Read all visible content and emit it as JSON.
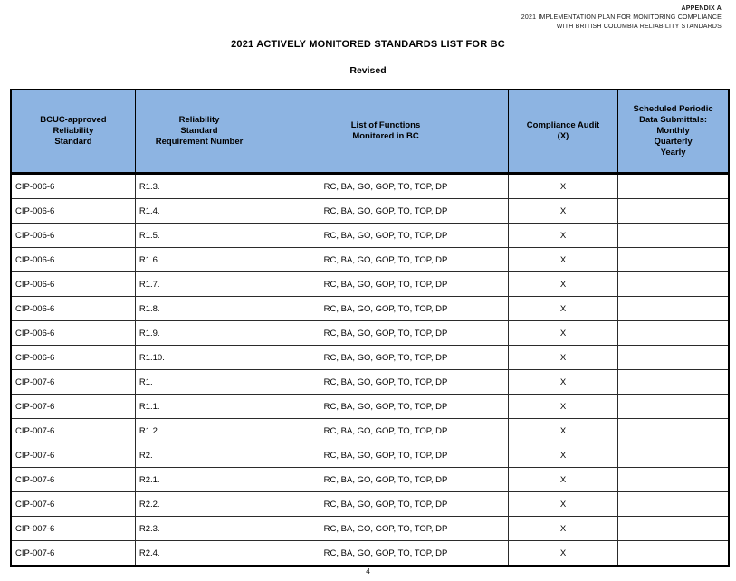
{
  "page": {
    "appendix_lines": [
      "APPENDIX A",
      "2021 IMPLEMENTATION PLAN FOR MONITORING COMPLIANCE",
      "WITH BRITISH COLUMBIA RELIABILITY STANDARDS"
    ],
    "title": "2021 ACTIVELY MONITORED STANDARDS LIST FOR BC",
    "subtitle": "Revised",
    "page_number": "4"
  },
  "colors": {
    "header_bg": "#8DB4E2",
    "shaded_column_bg": "#E9E9E9",
    "border": "#000000"
  },
  "table": {
    "headers": [
      "BCUC-approved\nReliability\nStandard",
      "Reliability\nStandard\nRequirement Number",
      "List of Functions\nMonitored in BC",
      "Compliance Audit\n(X)",
      "Scheduled Periodic\nData Submittals:\nMonthly\nQuarterly\nYearly"
    ],
    "row_keys": [
      "standard",
      "requirement",
      "functions",
      "audit",
      "submittals"
    ],
    "rows": [
      {
        "standard": "CIP-006-6",
        "requirement": "R1.3.",
        "functions": "RC, BA, GO, GOP, TO, TOP, DP",
        "audit": "X",
        "submittals": ""
      },
      {
        "standard": "CIP-006-6",
        "requirement": "R1.4.",
        "functions": "RC, BA, GO, GOP, TO, TOP, DP",
        "audit": "X",
        "submittals": ""
      },
      {
        "standard": "CIP-006-6",
        "requirement": "R1.5.",
        "functions": "RC, BA, GO, GOP, TO, TOP, DP",
        "audit": "X",
        "submittals": ""
      },
      {
        "standard": "CIP-006-6",
        "requirement": "R1.6.",
        "functions": "RC, BA, GO, GOP, TO, TOP, DP",
        "audit": "X",
        "submittals": ""
      },
      {
        "standard": "CIP-006-6",
        "requirement": "R1.7.",
        "functions": "RC, BA, GO, GOP, TO, TOP, DP",
        "audit": "X",
        "submittals": ""
      },
      {
        "standard": "CIP-006-6",
        "requirement": "R1.8.",
        "functions": "RC, BA, GO, GOP, TO, TOP, DP",
        "audit": "X",
        "submittals": ""
      },
      {
        "standard": "CIP-006-6",
        "requirement": "R1.9.",
        "functions": "RC, BA, GO, GOP, TO, TOP, DP",
        "audit": "X",
        "submittals": ""
      },
      {
        "standard": "CIP-006-6",
        "requirement": "R1.10.",
        "functions": "RC, BA, GO, GOP, TO, TOP, DP",
        "audit": "X",
        "submittals": ""
      },
      {
        "standard": "CIP-007-6",
        "requirement": "R1.",
        "functions": "RC, BA, GO, GOP, TO, TOP, DP",
        "audit": "X",
        "submittals": ""
      },
      {
        "standard": "CIP-007-6",
        "requirement": "R1.1.",
        "functions": "RC, BA, GO, GOP, TO, TOP, DP",
        "audit": "X",
        "submittals": ""
      },
      {
        "standard": "CIP-007-6",
        "requirement": "R1.2.",
        "functions": "RC, BA, GO, GOP, TO, TOP, DP",
        "audit": "X",
        "submittals": ""
      },
      {
        "standard": "CIP-007-6",
        "requirement": "R2.",
        "functions": "RC, BA, GO, GOP, TO, TOP, DP",
        "audit": "X",
        "submittals": ""
      },
      {
        "standard": "CIP-007-6",
        "requirement": "R2.1.",
        "functions": "RC, BA, GO, GOP, TO, TOP, DP",
        "audit": "X",
        "submittals": ""
      },
      {
        "standard": "CIP-007-6",
        "requirement": "R2.2.",
        "functions": "RC, BA, GO, GOP, TO, TOP, DP",
        "audit": "X",
        "submittals": ""
      },
      {
        "standard": "CIP-007-6",
        "requirement": "R2.3.",
        "functions": "RC, BA, GO, GOP, TO, TOP, DP",
        "audit": "X",
        "submittals": ""
      },
      {
        "standard": "CIP-007-6",
        "requirement": "R2.4.",
        "functions": "RC, BA, GO, GOP, TO, TOP, DP",
        "audit": "X",
        "submittals": ""
      }
    ]
  }
}
